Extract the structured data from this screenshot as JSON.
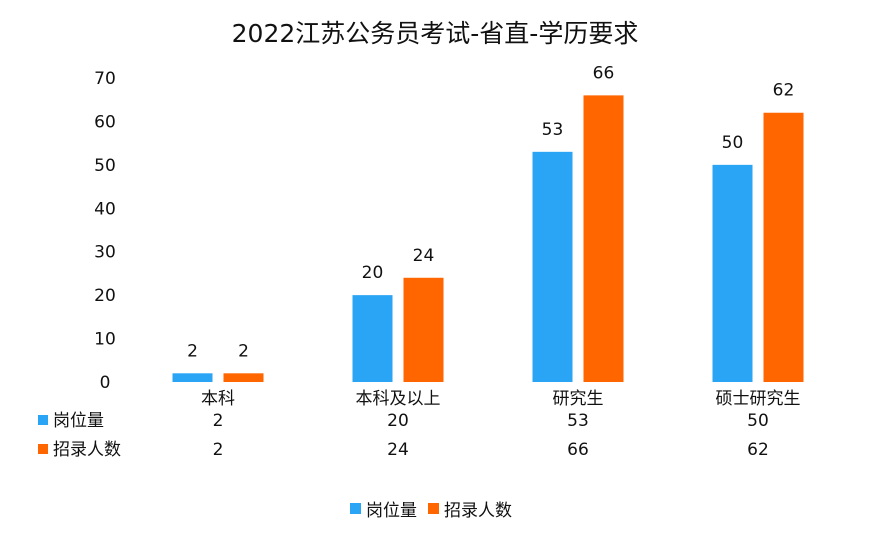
{
  "chart_data": {
    "type": "bar",
    "title": "2022江苏公务员考试-省直-学历要求",
    "categories": [
      "本科",
      "本科及以上",
      "研究生",
      "硕士研究生"
    ],
    "series": [
      {
        "name": "岗位量",
        "values": [
          2,
          20,
          53,
          50
        ],
        "color": "#2aa4f4"
      },
      {
        "name": "招录人数",
        "values": [
          2,
          24,
          66,
          62
        ],
        "color": "#ff6600"
      }
    ],
    "ylim": [
      0,
      70
    ],
    "yticks": [
      0,
      10,
      20,
      30,
      40,
      50,
      60,
      70
    ],
    "xlabel": "",
    "ylabel": "",
    "grid": false,
    "data_table": true,
    "legend": "bottom-center"
  }
}
